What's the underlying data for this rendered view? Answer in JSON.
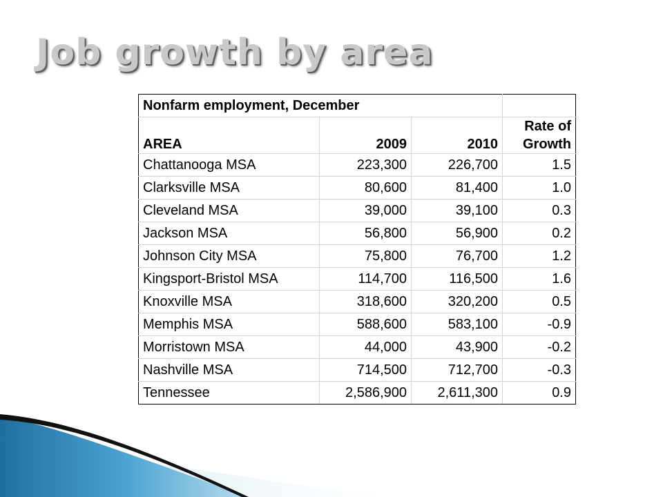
{
  "slide": {
    "title": "Job growth by area"
  },
  "table": {
    "caption": "Nonfarm employment, December",
    "headers": {
      "area": "AREA",
      "y2009": "2009",
      "y2010": "2010",
      "rate_line1": "Rate of",
      "rate_line2": "Growth"
    },
    "rows": [
      {
        "area": "Chattanooga MSA",
        "y2009": "223,300",
        "y2010": "226,700",
        "rate": "1.5"
      },
      {
        "area": "Clarksville MSA",
        "y2009": "80,600",
        "y2010": "81,400",
        "rate": "1.0"
      },
      {
        "area": "Cleveland MSA",
        "y2009": "39,000",
        "y2010": "39,100",
        "rate": "0.3"
      },
      {
        "area": "Jackson MSA",
        "y2009": "56,800",
        "y2010": "56,900",
        "rate": "0.2"
      },
      {
        "area": "Johnson City MSA",
        "y2009": "75,800",
        "y2010": "76,700",
        "rate": "1.2"
      },
      {
        "area": "Kingsport-Bristol MSA",
        "y2009": "114,700",
        "y2010": "116,500",
        "rate": "1.6"
      },
      {
        "area": "Knoxville MSA",
        "y2009": "318,600",
        "y2010": "320,200",
        "rate": "0.5"
      },
      {
        "area": "Memphis MSA",
        "y2009": "588,600",
        "y2010": "583,100",
        "rate": "-0.9"
      },
      {
        "area": "Morristown MSA",
        "y2009": "44,000",
        "y2010": "43,900",
        "rate": "-0.2"
      },
      {
        "area": "Nashville MSA",
        "y2009": "714,500",
        "y2010": "712,700",
        "rate": "-0.3"
      },
      {
        "area": "Tennessee",
        "y2009": "2,586,900",
        "y2010": "2,611,300",
        "rate": "0.9"
      }
    ]
  },
  "theme": {
    "accent_blue": "#3a8fc0",
    "accent_dark": "#111111"
  }
}
